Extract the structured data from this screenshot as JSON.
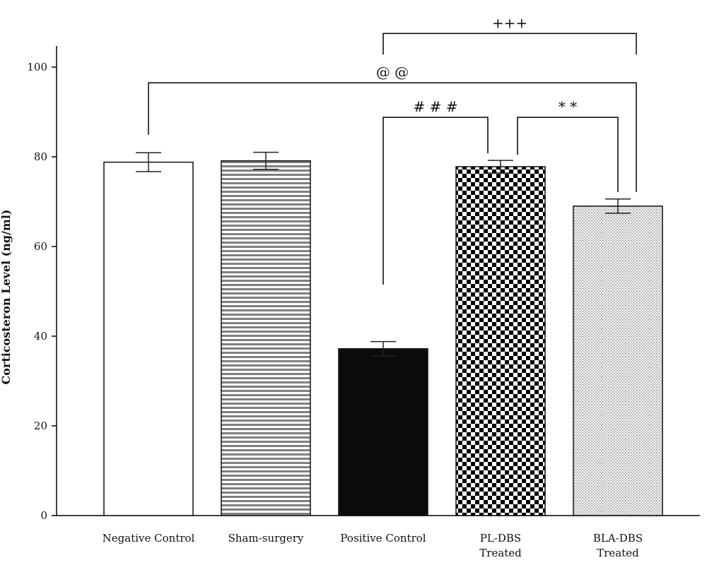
{
  "chart_data": {
    "type": "bar",
    "title": "",
    "xlabel": "",
    "ylabel": "Corticosteron Level (ng/ml)",
    "ylim": [
      0,
      100
    ],
    "yticks": [
      0,
      20,
      40,
      60,
      80,
      100
    ],
    "grid": false,
    "legend": "none",
    "categories": [
      [
        "Negative Control"
      ],
      [
        "Sham-surgery"
      ],
      [
        "Positive Control"
      ],
      [
        "PL-DBS",
        "Treated"
      ],
      [
        "BLA-DBS",
        "Treated"
      ]
    ],
    "values": [
      78.8,
      79.1,
      37.2,
      77.8,
      69.0
    ],
    "errors": [
      2.1,
      1.9,
      1.6,
      1.4,
      1.6
    ],
    "patterns": [
      "white",
      "horizontal-stripes",
      "solid-black",
      "checkerboard",
      "stipple"
    ],
    "significance": [
      {
        "label": "+++",
        "from": 2,
        "to": 4,
        "y": 107.5
      },
      {
        "label": "@ @",
        "from": 0,
        "to": 4,
        "y": 96.5
      },
      {
        "label": "# # #",
        "from": 2,
        "to": 3,
        "y": 88.8
      },
      {
        "label": "* *",
        "from": 3,
        "to": 4,
        "y": 88.8
      }
    ]
  }
}
